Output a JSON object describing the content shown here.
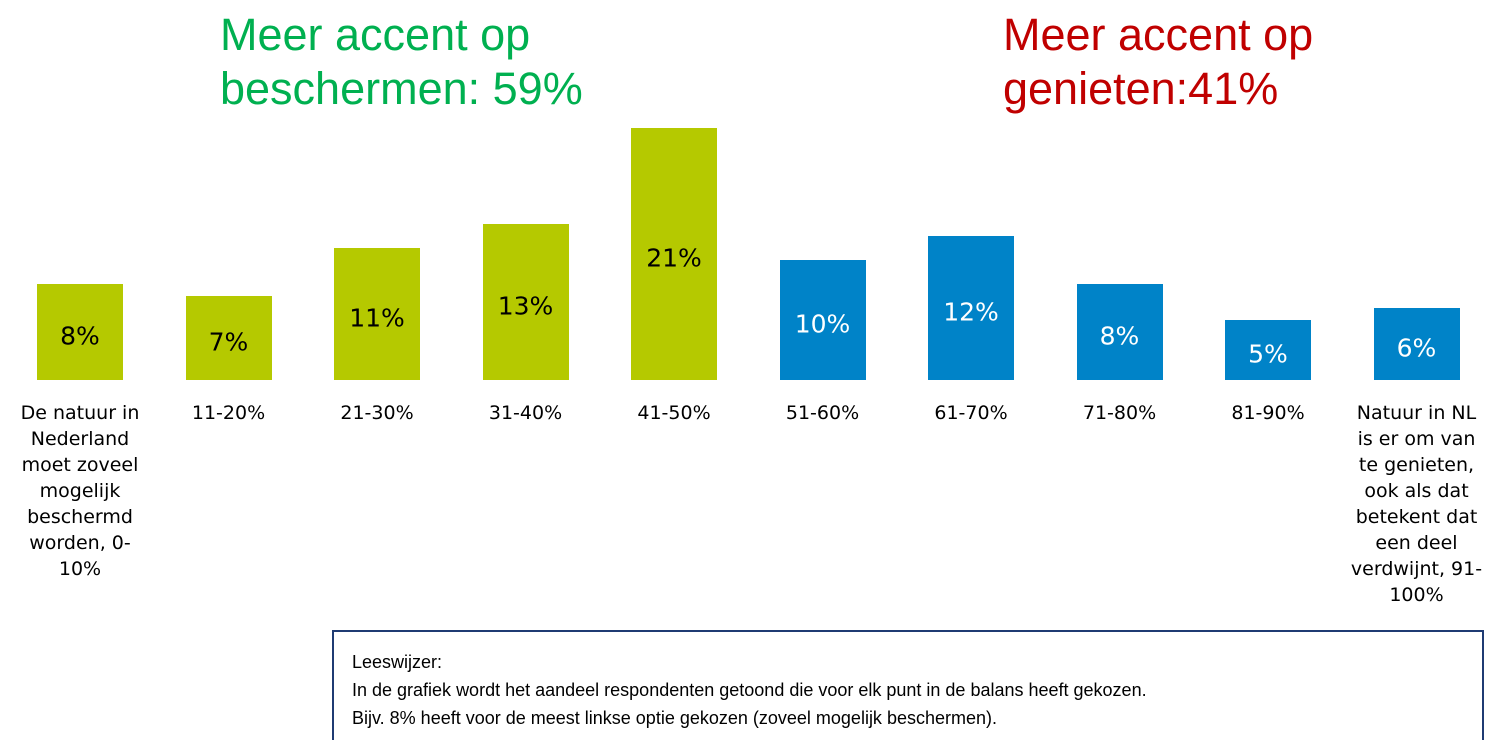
{
  "chart_data": {
    "type": "bar",
    "annotations": [
      {
        "lines": [
          "Meer accent op",
          "beschermen: 59%"
        ],
        "color": "#00b050"
      },
      {
        "lines": [
          "Meer accent op",
          "genieten:41%"
        ],
        "color": "#c00000"
      }
    ],
    "categories": [
      "De natuur in Nederland moet zoveel mogelijk beschermd worden, 0-10%",
      "11-20%",
      "21-30%",
      "31-40%",
      "41-50%",
      "51-60%",
      "61-70%",
      "71-80%",
      "81-90%",
      "Natuur in NL is er om van te genieten, ook als dat betekent dat een deel verdwijnt, 91-100%"
    ],
    "values": [
      8,
      7,
      11,
      13,
      21,
      10,
      12,
      8,
      5,
      6
    ],
    "value_labels": [
      "8%",
      "7%",
      "11%",
      "13%",
      "21%",
      "10%",
      "12%",
      "8%",
      "5%",
      "6%"
    ],
    "colors": [
      "#b5c900",
      "#b5c900",
      "#b5c900",
      "#b5c900",
      "#b5c900",
      "#0083c8",
      "#0083c8",
      "#0083c8",
      "#0083c8",
      "#0083c8"
    ],
    "label_colors": [
      "#000000",
      "#000000",
      "#000000",
      "#000000",
      "#000000",
      "#ffffff",
      "#ffffff",
      "#ffffff",
      "#ffffff",
      "#ffffff"
    ],
    "note": {
      "heading": "Leeswijzer:",
      "lines": [
        "In de grafiek wordt het aandeel respondenten getoond die voor elk punt in de balans heeft gekozen.",
        "Bijv. 8% heeft voor de meest linkse optie gekozen (zoveel mogelijk beschermen)."
      ]
    }
  }
}
